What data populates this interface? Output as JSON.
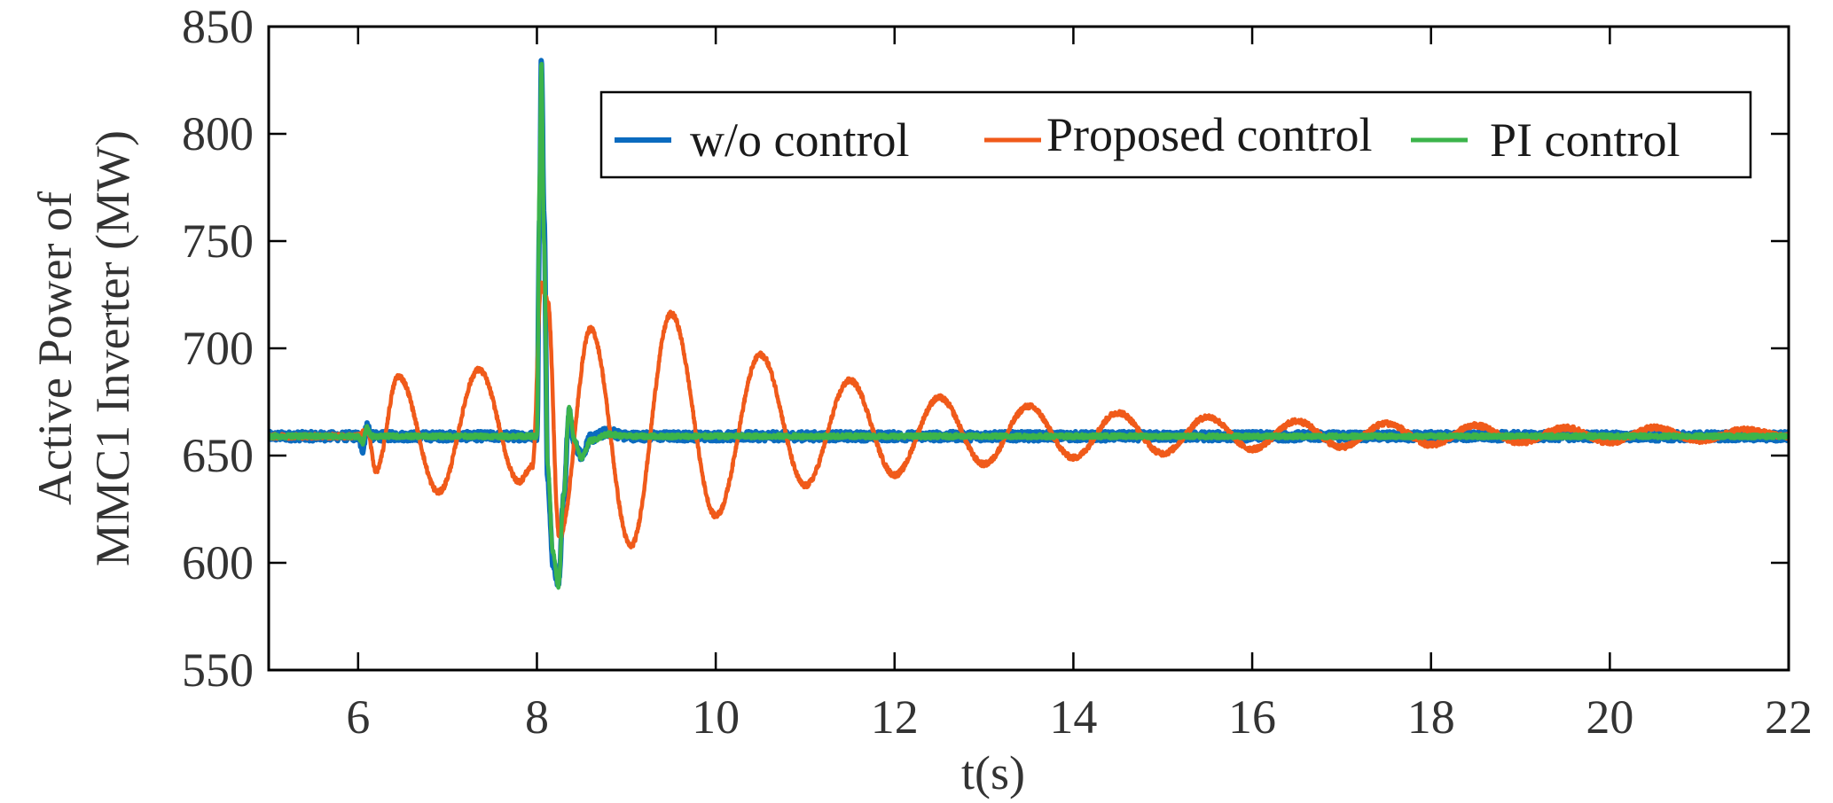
{
  "chart_data": {
    "type": "line",
    "xlabel": "t(s)",
    "ylabel_lines": [
      "Active Power of",
      "MMC1 Inverter (MW)"
    ],
    "xlim": [
      5,
      22
    ],
    "ylim": [
      550,
      850
    ],
    "xticks": [
      6,
      8,
      10,
      12,
      14,
      16,
      18,
      20,
      22
    ],
    "yticks": [
      550,
      600,
      650,
      700,
      750,
      800,
      850
    ],
    "legend_position": "top-right",
    "series": [
      {
        "name": "w/o control",
        "color": "#0b6bbf",
        "x": [
          5.0,
          6.0,
          6.05,
          6.1,
          6.15,
          8.0,
          8.03,
          8.05,
          8.08,
          8.12,
          8.18,
          8.24,
          8.3,
          8.36,
          8.42,
          8.5,
          8.6,
          8.8,
          9.0,
          10.0,
          12.0,
          14.0,
          16.0,
          18.0,
          20.0,
          22.0
        ],
        "y": [
          659,
          659,
          653,
          664,
          659,
          659,
          760,
          835,
          760,
          640,
          600,
          590,
          630,
          670,
          655,
          650,
          658,
          661,
          659,
          659,
          659,
          659,
          659,
          659,
          659,
          659
        ],
        "noise": 2.2
      },
      {
        "name": "Proposed control",
        "color": "#f05a1a",
        "x": [
          5.0,
          6.0,
          6.1,
          6.2,
          6.45,
          6.9,
          7.35,
          7.8,
          7.95,
          8.05,
          8.12,
          8.25,
          8.6,
          9.05,
          9.5,
          10.0,
          10.5,
          11.0,
          11.5,
          12.0,
          12.5,
          13.0,
          13.5,
          14.0,
          14.5,
          15.0,
          15.5,
          16.0,
          16.5,
          17.0,
          17.5,
          18.0,
          18.5,
          19.0,
          19.5,
          20.0,
          20.5,
          21.0,
          21.5,
          22.0
        ],
        "y": [
          659,
          659,
          662,
          643,
          687,
          633,
          690,
          638,
          645,
          730,
          722,
          612,
          709,
          608,
          716,
          622,
          697,
          636,
          685,
          641,
          677,
          646,
          673,
          649,
          670,
          651,
          668,
          653,
          666,
          654,
          665,
          655,
          664,
          656,
          663,
          656,
          663,
          657,
          662,
          659
        ],
        "noise": 1.2
      },
      {
        "name": "PI control",
        "color": "#3cb44b",
        "x": [
          5.0,
          6.0,
          6.05,
          6.1,
          6.15,
          8.0,
          8.03,
          8.05,
          8.08,
          8.12,
          8.18,
          8.24,
          8.3,
          8.36,
          8.42,
          8.5,
          8.6,
          8.8,
          9.0,
          22.0
        ],
        "y": [
          659,
          659,
          656,
          663,
          659,
          659,
          780,
          833,
          750,
          645,
          605,
          589,
          632,
          672,
          657,
          649,
          657,
          660,
          659,
          659
        ],
        "noise": 1.0
      }
    ]
  }
}
